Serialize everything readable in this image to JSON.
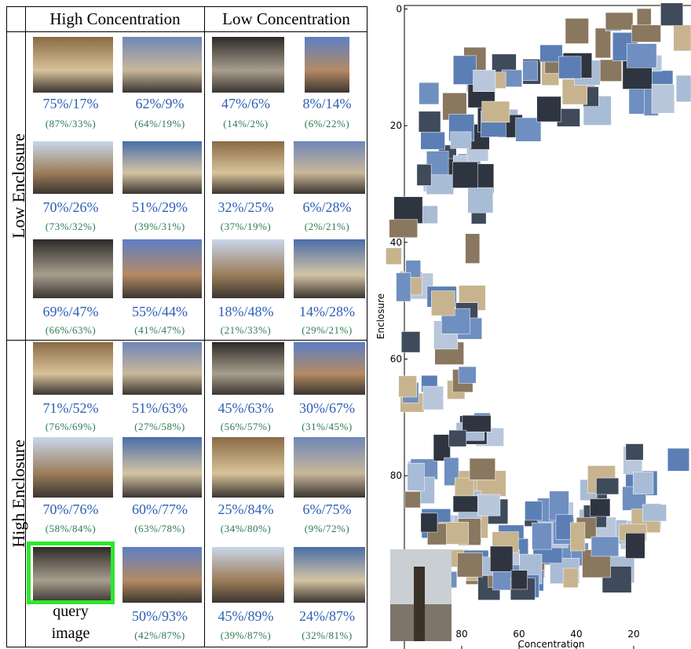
{
  "table": {
    "headers": [
      "High Concentration",
      "Low Concentration"
    ],
    "groups": [
      "Low Enclosure",
      "High Enclosure"
    ],
    "rows": [
      [
        {
          "main": "75%/17%",
          "sub": "(87%/33%)"
        },
        {
          "main": "62%/9%",
          "sub": "(64%/19%)"
        },
        {
          "main": "47%/6%",
          "sub": "(14%/2%)"
        },
        {
          "main": "8%/14%",
          "sub": "(6%/22%)"
        }
      ],
      [
        {
          "main": "70%/26%",
          "sub": "(73%/32%)"
        },
        {
          "main": "51%/29%",
          "sub": "(39%/31%)"
        },
        {
          "main": "32%/25%",
          "sub": "(37%/19%)"
        },
        {
          "main": "6%/28%",
          "sub": "(2%/21%)"
        }
      ],
      [
        {
          "main": "69%/47%",
          "sub": "(66%/63%)"
        },
        {
          "main": "55%/44%",
          "sub": "(41%/47%)"
        },
        {
          "main": "18%/48%",
          "sub": "(21%/33%)"
        },
        {
          "main": "14%/28%",
          "sub": "(29%/21%)"
        }
      ],
      [
        {
          "main": "71%/52%",
          "sub": "(76%/69%)"
        },
        {
          "main": "51%/63%",
          "sub": "(27%/58%)"
        },
        {
          "main": "45%/63%",
          "sub": "(56%/57%)"
        },
        {
          "main": "30%/67%",
          "sub": "(31%/45%)"
        }
      ],
      [
        {
          "main": "70%/76%",
          "sub": "(58%/84%)"
        },
        {
          "main": "60%/77%",
          "sub": "(63%/78%)"
        },
        {
          "main": "25%/84%",
          "sub": "(34%/80%)"
        },
        {
          "main": "6%/75%",
          "sub": "(9%/72%)"
        }
      ],
      [
        {
          "query": [
            "query",
            "image"
          ]
        },
        {
          "main": "50%/93%",
          "sub": "(42%/87%)"
        },
        {
          "main": "45%/89%",
          "sub": "(39%/87%)"
        },
        {
          "main": "24%/87%",
          "sub": "(32%/81%)"
        }
      ]
    ]
  },
  "plot": {
    "xlabel": "Concentration",
    "ylabel": "Enclosure",
    "xlim": [
      100,
      0
    ],
    "ylim": [
      -0.6,
      109.7
    ],
    "xticks": [
      80,
      60,
      40,
      20
    ],
    "yticks": [
      0,
      20,
      40,
      60,
      80
    ]
  }
}
